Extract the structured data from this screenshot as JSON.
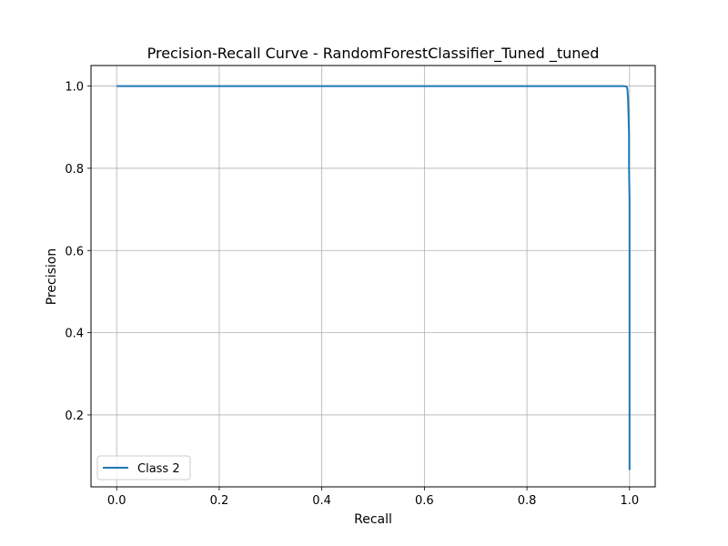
{
  "chart_data": {
    "type": "line",
    "title": "Precision-Recall Curve - RandomForestClassifier_Tuned _tuned",
    "xlabel": "Recall",
    "ylabel": "Precision",
    "xlim": [
      -0.05,
      1.05
    ],
    "ylim": [
      0.025,
      1.05
    ],
    "xticks": [
      0.0,
      0.2,
      0.4,
      0.6,
      0.8,
      1.0
    ],
    "xtick_labels": [
      "0.0",
      "0.2",
      "0.4",
      "0.6",
      "0.8",
      "1.0"
    ],
    "yticks": [
      0.2,
      0.4,
      0.6,
      0.8,
      1.0
    ],
    "ytick_labels": [
      "0.2",
      "0.4",
      "0.6",
      "0.8",
      "1.0"
    ],
    "grid": true,
    "legend_position": "lower-left",
    "series": [
      {
        "name": "Class 2",
        "color": "#1f77b4",
        "x": [
          0.0,
          0.2,
          0.4,
          0.6,
          0.8,
          0.96,
          0.99,
          0.993,
          0.995,
          0.996,
          0.997,
          0.998,
          0.999,
          0.999,
          1.0,
          1.0,
          1.0
        ],
        "y": [
          1.0,
          1.0,
          1.0,
          1.0,
          1.0,
          1.0,
          1.0,
          0.999,
          0.997,
          0.99,
          0.97,
          0.93,
          0.88,
          0.8,
          0.72,
          0.3,
          0.066
        ]
      }
    ]
  }
}
